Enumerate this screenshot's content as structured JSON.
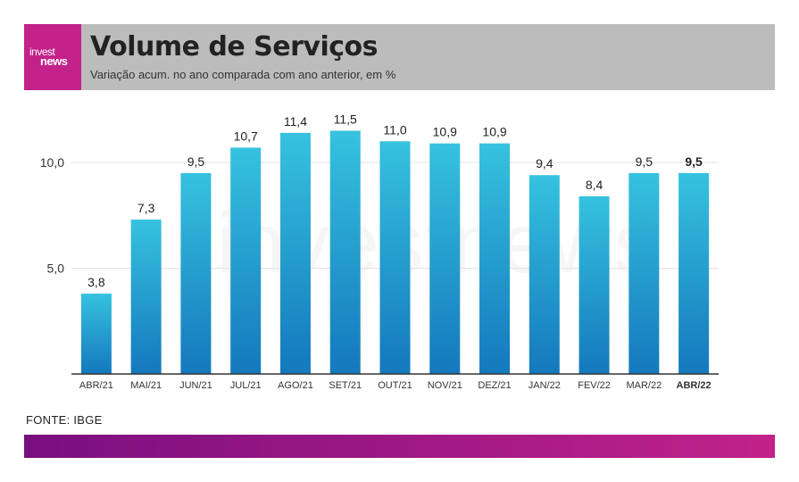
{
  "brand": {
    "logo_line1": "invest",
    "logo_line2": "news",
    "watermark": "investnews"
  },
  "header": {
    "title": "Volume de Serviços",
    "subtitle": "Variação acum. no ano comparada com ano anterior, em %"
  },
  "colors": {
    "bar_top": "#36c2df",
    "bar_bottom": "#1478bd",
    "header_bg": "#bcbcbc",
    "brand": "#c2228a",
    "footer_start": "#7a0f80"
  },
  "chart_data": {
    "type": "bar",
    "categories": [
      "ABR/21",
      "MAI/21",
      "JUN/21",
      "JUL/21",
      "AGO/21",
      "SET/21",
      "OUT/21",
      "NOV/21",
      "DEZ/21",
      "JAN/22",
      "FEV/22",
      "MAR/22",
      "ABR/22"
    ],
    "values": [
      3.8,
      7.3,
      9.5,
      10.7,
      11.4,
      11.5,
      11.0,
      10.9,
      10.9,
      9.4,
      8.4,
      9.5,
      9.5
    ],
    "value_labels": [
      "3,8",
      "7,3",
      "9,5",
      "10,7",
      "11,4",
      "11,5",
      "11,0",
      "10,9",
      "10,9",
      "9,4",
      "8,4",
      "9,5",
      "9,5"
    ],
    "highlight_index": 12,
    "yticks": [
      5.0,
      10.0
    ],
    "ytick_labels": [
      "5,0",
      "10,0"
    ],
    "ylim": [
      0,
      12
    ],
    "grid": true
  },
  "footer": {
    "source": "FONTE: IBGE"
  }
}
